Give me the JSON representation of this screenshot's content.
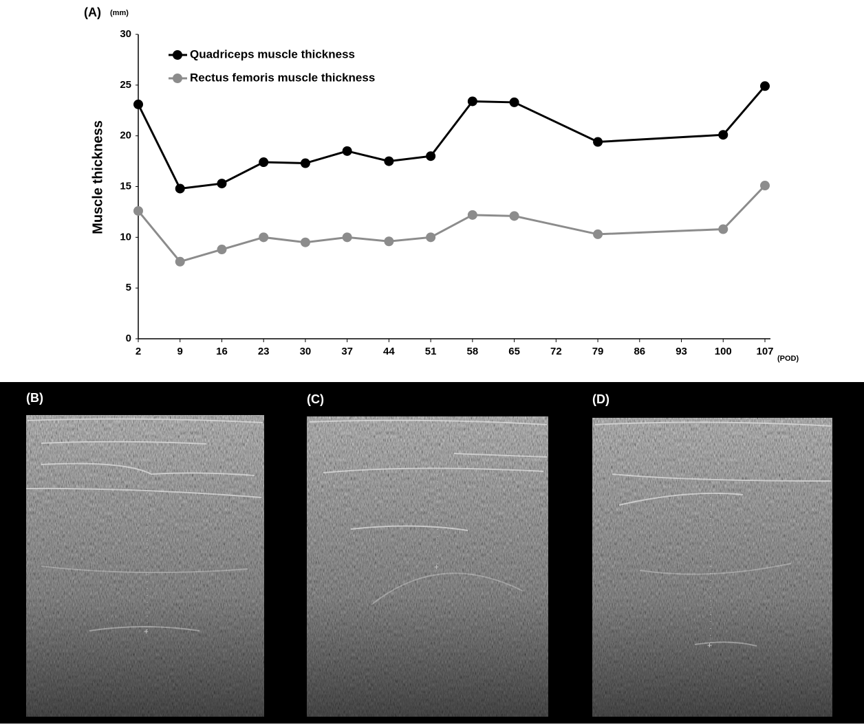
{
  "chart_data": {
    "type": "line",
    "panel_label": "(A)",
    "y_unit": "(mm)",
    "ylabel": "Muscle thickness",
    "x_unit": "(POD)",
    "x": [
      2,
      9,
      16,
      23,
      30,
      37,
      44,
      51,
      58,
      65,
      79,
      100,
      107
    ],
    "series": [
      {
        "name": "Quadriceps muscle thickness",
        "color": "#000000",
        "values": [
          23.1,
          14.8,
          15.3,
          17.4,
          17.3,
          18.5,
          17.5,
          18.0,
          23.4,
          23.3,
          19.4,
          20.1,
          24.9
        ]
      },
      {
        "name": "Rectus femoris muscle thickness",
        "color": "#8c8c8c",
        "values": [
          12.6,
          7.6,
          8.8,
          10.0,
          9.5,
          10.0,
          9.6,
          10.0,
          12.2,
          12.1,
          10.3,
          10.8,
          15.1
        ]
      }
    ],
    "xlim": [
      2,
      107
    ],
    "xticks": [
      2,
      9,
      16,
      23,
      30,
      37,
      44,
      51,
      58,
      65,
      72,
      79,
      86,
      93,
      100,
      107
    ],
    "ylim": [
      0,
      30
    ],
    "yticks": [
      0,
      5,
      10,
      15,
      20,
      25,
      30
    ],
    "grid": false,
    "legend": "upper left"
  },
  "panels": [
    {
      "label": "(B)"
    },
    {
      "label": "(C)"
    },
    {
      "label": "(D)"
    }
  ]
}
